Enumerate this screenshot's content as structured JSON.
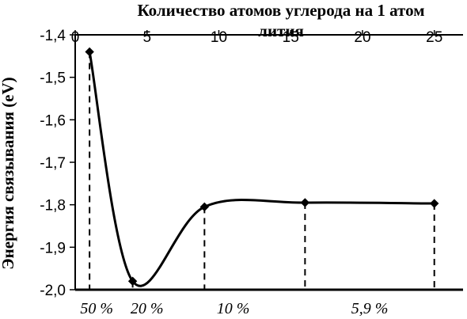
{
  "chart_data": {
    "type": "line",
    "title": "Количество атомов углерода на 1 атом лития",
    "title_lines": [
      "Количество атомов углерода на 1 атом",
      "лития"
    ],
    "ylabel": "Энергия связывания (eV)",
    "xlabel": "",
    "xlim": [
      0,
      27
    ],
    "ylim": [
      -2.0,
      -1.4
    ],
    "x_ticks": [
      0,
      5,
      10,
      15,
      20,
      25
    ],
    "x_tick_labels": [
      "0",
      "5",
      "10",
      "15",
      "20",
      "25"
    ],
    "x_axis_position": "top",
    "y_ticks": [
      -2.0,
      -1.9,
      -1.8,
      -1.7,
      -1.6,
      -1.5,
      -1.4
    ],
    "y_tick_labels": [
      "-2,0",
      "-1,9",
      "-1,8",
      "-1,7",
      "-1,6",
      "-1,5",
      "-1,4"
    ],
    "grid": false,
    "smooth": true,
    "marker": "diamond",
    "series": [
      {
        "x": [
          1,
          4,
          9,
          16,
          25
        ],
        "y": [
          -1.44,
          -1.98,
          -1.805,
          -1.795,
          -1.797
        ]
      }
    ],
    "annotations": [
      "50 %",
      "20 %",
      "10 %",
      "5,9 %"
    ],
    "annotation_x": [
      1.5,
      5.0,
      11.0,
      20.5
    ]
  }
}
